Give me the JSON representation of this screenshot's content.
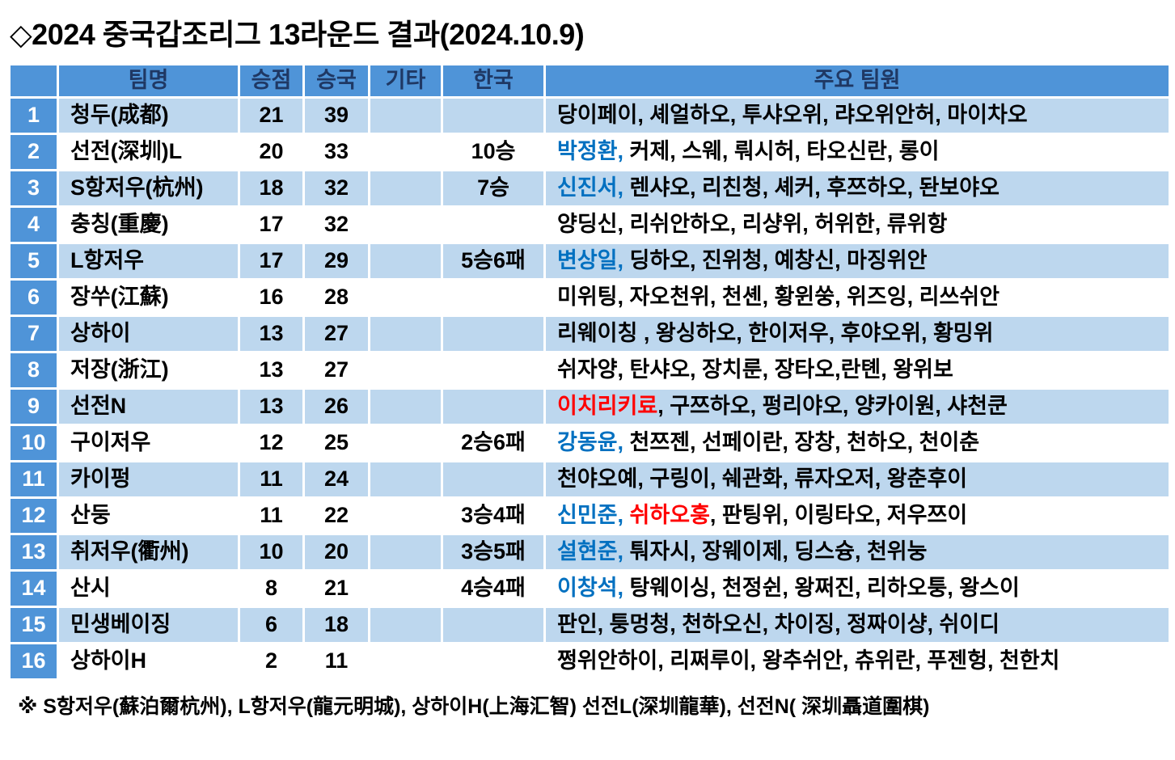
{
  "title": "◇2024 중국갑조리그 13라운드 결과(2024.10.9)",
  "table": {
    "headers": {
      "rank": "",
      "team": "팀명",
      "points": "승점",
      "wins": "승국",
      "etc": "기타",
      "korea": "한국",
      "members": "주요 팀원"
    },
    "rows": [
      {
        "rank": "1",
        "team": "청두(成都)",
        "points": "21",
        "wins": "39",
        "etc": "",
        "korea": "",
        "members": [
          {
            "text": "당이페이, 셰얼하오, 투샤오위, 랴오위안허, 마이차오",
            "color": "black"
          }
        ]
      },
      {
        "rank": "2",
        "team": "선전(深圳)L",
        "points": "20",
        "wins": "33",
        "etc": "",
        "korea": "10승",
        "members": [
          {
            "text": "박정환,",
            "color": "blue"
          },
          {
            "text": " 커제, 스웨, 뤄시허, 타오신란, 롱이",
            "color": "black"
          }
        ]
      },
      {
        "rank": "3",
        "team": "S항저우(杭州)",
        "points": "18",
        "wins": "32",
        "etc": "",
        "korea": "7승",
        "members": [
          {
            "text": "신진서,",
            "color": "blue"
          },
          {
            "text": " 렌샤오, 리친청, 셰커, 후쯔하오, 돤보야오",
            "color": "black"
          }
        ]
      },
      {
        "rank": "4",
        "team": "충칭(重慶)",
        "points": "17",
        "wins": "32",
        "etc": "",
        "korea": "",
        "members": [
          {
            "text": "양딩신, 리쉬안하오, 리샹위, 허위한, 류위항",
            "color": "black"
          }
        ]
      },
      {
        "rank": "5",
        "team": "L항저우",
        "points": "17",
        "wins": "29",
        "etc": "",
        "korea": "5승6패",
        "members": [
          {
            "text": "변상일,",
            "color": "blue"
          },
          {
            "text": " 딩하오, 진위청, 예창신, 마징위안",
            "color": "black"
          }
        ]
      },
      {
        "rank": "6",
        "team": "장쑤(江蘇)",
        "points": "16",
        "wins": "28",
        "etc": "",
        "korea": "",
        "members": [
          {
            "text": "미위팅, 자오천위, 천셴, 황윈쑹, 위즈잉, 리쓰쉬안",
            "color": "black"
          }
        ]
      },
      {
        "rank": "7",
        "team": "상하이",
        "points": "13",
        "wins": "27",
        "etc": "",
        "korea": "",
        "members": [
          {
            "text": "리웨이칭 , 왕싱하오, 한이저우, 후야오위, 황밍위",
            "color": "black"
          }
        ]
      },
      {
        "rank": "8",
        "team": "저장(浙江)",
        "points": "13",
        "wins": "27",
        "etc": "",
        "korea": "",
        "members": [
          {
            "text": "쉬자양, 탄샤오, 장치룬, 장타오,란톈, 왕위보",
            "color": "black"
          }
        ]
      },
      {
        "rank": "9",
        "team": "선전N",
        "points": "13",
        "wins": "26",
        "etc": "",
        "korea": "",
        "members": [
          {
            "text": "이치리키료",
            "color": "red"
          },
          {
            "text": ", 구쯔하오, 펑리야오, 양카이원, 샤천쿤",
            "color": "black"
          }
        ]
      },
      {
        "rank": "10",
        "team": "구이저우",
        "points": "12",
        "wins": "25",
        "etc": "",
        "korea": "2승6패",
        "members": [
          {
            "text": "강동윤,",
            "color": "blue"
          },
          {
            "text": " 천쯔젠, 선페이란, 장창, 천하오, 천이춘",
            "color": "black"
          }
        ]
      },
      {
        "rank": "11",
        "team": "카이펑",
        "points": "11",
        "wins": "24",
        "etc": "",
        "korea": "",
        "members": [
          {
            "text": "천야오예, 구링이, 쉐관화, 류자오저, 왕춘후이",
            "color": "black"
          }
        ]
      },
      {
        "rank": "12",
        "team": "산둥",
        "points": "11",
        "wins": "22",
        "etc": "",
        "korea": "3승4패",
        "members": [
          {
            "text": "신민준,",
            "color": "blue"
          },
          {
            "text": " ",
            "color": "black"
          },
          {
            "text": "쉬하오훙",
            "color": "red"
          },
          {
            "text": ", 판팅위, 이링타오, 저우쯔이",
            "color": "black"
          }
        ]
      },
      {
        "rank": "13",
        "team": "취저우(衢州)",
        "points": "10",
        "wins": "20",
        "etc": "",
        "korea": "3승5패",
        "members": [
          {
            "text": "설현준,",
            "color": "blue"
          },
          {
            "text": " 퉈자시, 장웨이제, 딩스슝, 천위눙",
            "color": "black"
          }
        ]
      },
      {
        "rank": "14",
        "team": "산시",
        "points": "8",
        "wins": "21",
        "etc": "",
        "korea": "4승4패",
        "members": [
          {
            "text": "이창석,",
            "color": "blue"
          },
          {
            "text": " 탕웨이싱, 천정쉰, 왕쩌진, 리하오퉁, 왕스이",
            "color": "black"
          }
        ]
      },
      {
        "rank": "15",
        "team": "민생베이징",
        "points": "6",
        "wins": "18",
        "etc": "",
        "korea": "",
        "members": [
          {
            "text": "판인, 퉁멍청, 천하오신, 차이징, 정짜이샹, 쉬이디",
            "color": "black"
          }
        ]
      },
      {
        "rank": "16",
        "team": "상하이H",
        "points": "2",
        "wins": "11",
        "etc": "",
        "korea": "",
        "members": [
          {
            "text": "쩡위안하이, 리쩌루이, 왕추쉬안, 츄위란, 푸젠헝, 천한치",
            "color": "black"
          }
        ]
      }
    ]
  },
  "footnote": "※ S항저우(蘇泊爾杭州), L항저우(龍元明城), 상하이H(上海汇智) 선전L(深圳龍華), 선전N( 深圳聶道圍棋)",
  "colors": {
    "header_bg": "#4F94D8",
    "header_text": "#1F3864",
    "row_alt_bg": "#BDD7EE",
    "korean_player": "#0070C0",
    "highlight_red": "#FF0000"
  }
}
